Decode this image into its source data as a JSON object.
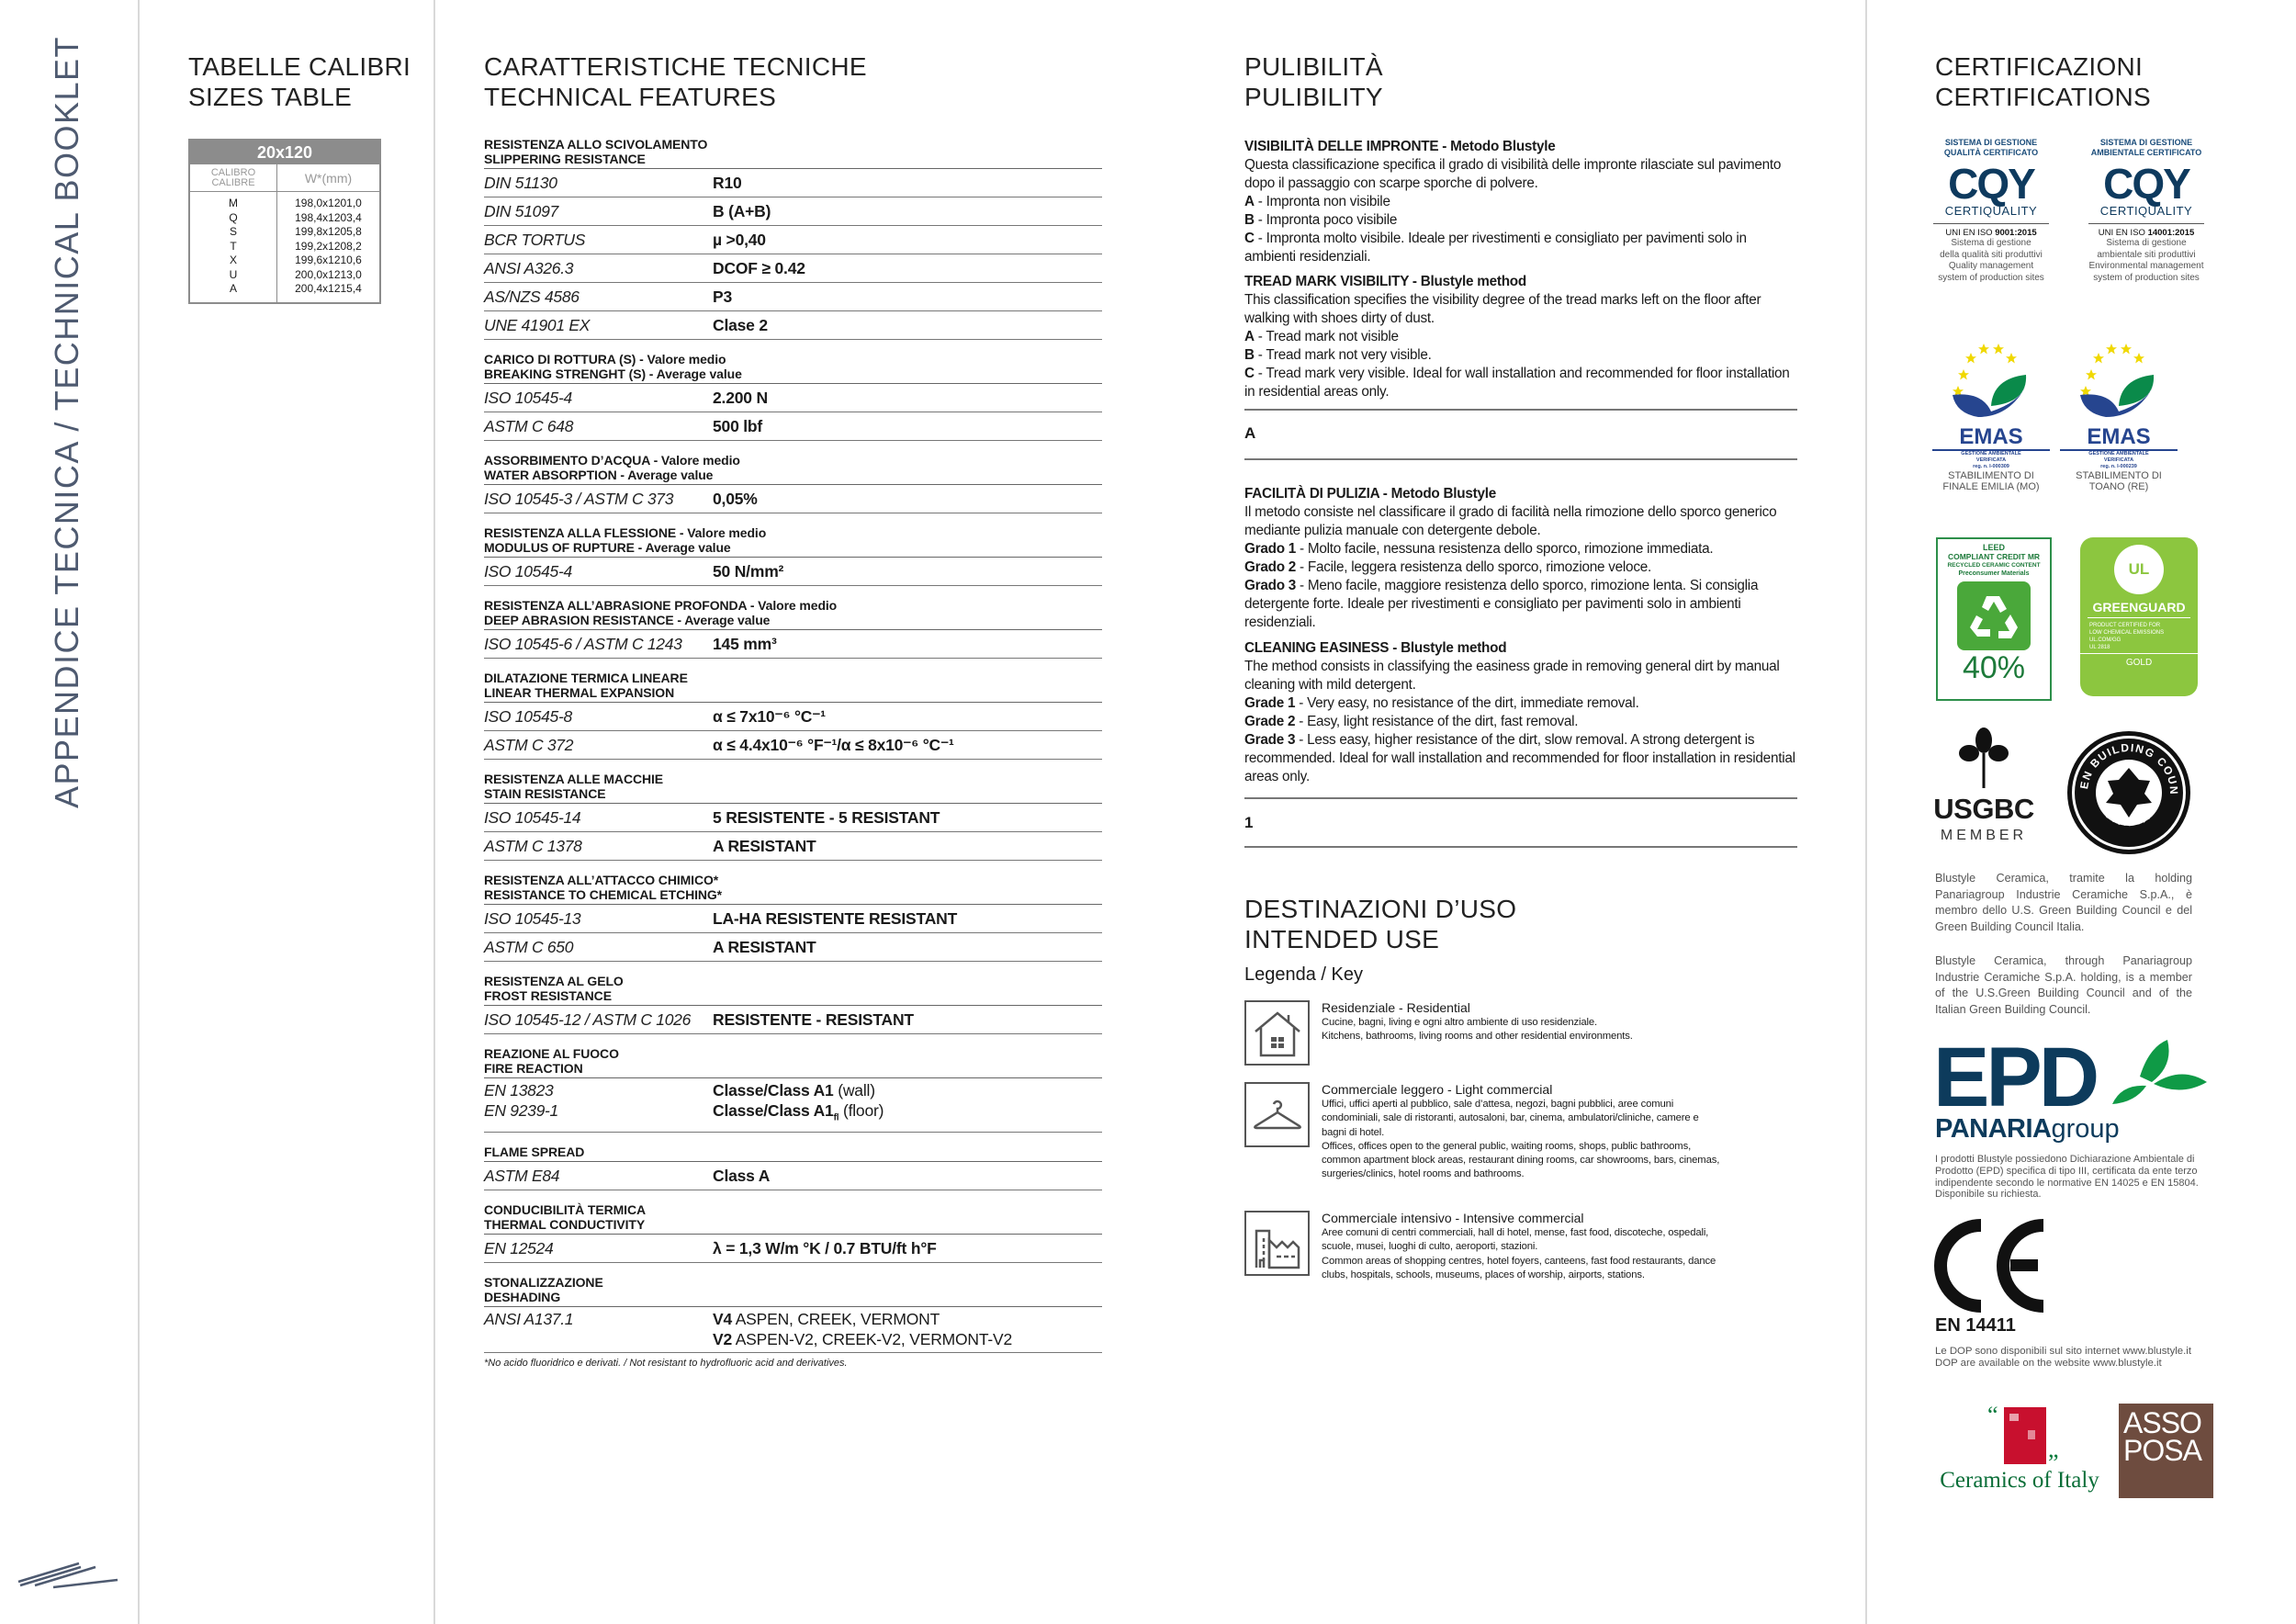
{
  "side_title": "APPENDICE TECNICA / TECHNICAL BOOKLET",
  "sizes": {
    "title": [
      "TABELLE CALIBRI",
      "SIZES TABLE"
    ],
    "format": "20x120",
    "col1": [
      "CALIBRO",
      "CALIBRE"
    ],
    "col2": "W*(mm)",
    "rows": [
      {
        "cal": "M",
        "w": "198,0x1201,0"
      },
      {
        "cal": "Q",
        "w": "198,4x1203,4"
      },
      {
        "cal": "S",
        "w": "199,8x1205,8"
      },
      {
        "cal": "T",
        "w": "199,2x1208,2"
      },
      {
        "cal": "X",
        "w": "199,6x1210,6"
      },
      {
        "cal": "U",
        "w": "200,0x1213,0"
      },
      {
        "cal": "A",
        "w": "200,4x1215,4"
      }
    ]
  },
  "tech": {
    "title": [
      "CARATTERISTICHE TECNICHE",
      "TECHNICAL FEATURES"
    ],
    "sections": [
      {
        "h": [
          "RESISTENZA ALLO SCIVOLAMENTO",
          "SLIPPERING RESISTANCE"
        ],
        "rows": [
          {
            "l": [
              "DIN 51130"
            ],
            "v": [
              {
                "b": "R10"
              }
            ]
          },
          {
            "l": [
              "DIN 51097"
            ],
            "v": [
              {
                "b": "B (A+B)"
              }
            ]
          },
          {
            "l": [
              "BCR TORTUS"
            ],
            "v": [
              {
                "b": "µ >0,40"
              }
            ]
          },
          {
            "l": [
              "ANSI A326.3"
            ],
            "v": [
              {
                "b": "DCOF ≥ 0.42"
              }
            ]
          },
          {
            "l": [
              "AS/NZS 4586"
            ],
            "v": [
              {
                "b": "P3"
              }
            ]
          },
          {
            "l": [
              "UNE 41901 EX"
            ],
            "v": [
              {
                "b": "Clase 2"
              }
            ]
          }
        ]
      },
      {
        "h": [
          "CARICO DI ROTTURA (S) - Valore medio",
          "BREAKING STRENGHT (S) - Average value"
        ],
        "rows": [
          {
            "l": [
              "ISO 10545-4"
            ],
            "v": [
              {
                "b": "2.200 N"
              }
            ]
          },
          {
            "l": [
              "ASTM C 648"
            ],
            "v": [
              {
                "b": "500 lbf"
              }
            ]
          }
        ]
      },
      {
        "h": [
          "ASSORBIMENTO D’ACQUA - Valore medio",
          "WATER ABSORPTION - Average value"
        ],
        "rows": [
          {
            "l": [
              "ISO 10545-3 / ASTM C 373"
            ],
            "v": [
              {
                "b": "0,05%"
              }
            ]
          }
        ]
      },
      {
        "h": [
          "RESISTENZA ALLA FLESSIONE - Valore medio",
          "MODULUS OF RUPTURE - Average value"
        ],
        "rows": [
          {
            "l": [
              "ISO 10545-4"
            ],
            "v": [
              {
                "b": "50 N/mm²"
              }
            ]
          }
        ]
      },
      {
        "h": [
          "RESISTENZA ALL’ABRASIONE PROFONDA - Valore medio",
          "DEEP ABRASION RESISTANCE - Average value"
        ],
        "rows": [
          {
            "l": [
              "ISO 10545-6 / ASTM C 1243"
            ],
            "v": [
              {
                "b": "145 mm³"
              }
            ]
          }
        ]
      },
      {
        "h": [
          "DILATAZIONE TERMICA LINEARE",
          "LINEAR THERMAL EXPANSION"
        ],
        "rows": [
          {
            "l": [
              "ISO 10545-8"
            ],
            "v": [
              {
                "b": "α ≤ 7x10⁻⁶ °C⁻¹"
              }
            ]
          },
          {
            "l": [
              "ASTM C 372"
            ],
            "v": [
              {
                "b": "α ≤ 4.4x10⁻⁶ °F⁻¹/α ≤ 8x10⁻⁶ °C⁻¹"
              }
            ]
          }
        ]
      },
      {
        "h": [
          "RESISTENZA ALLE MACCHIE",
          "STAIN RESISTANCE"
        ],
        "rows": [
          {
            "l": [
              "ISO 10545-14"
            ],
            "v": [
              {
                "b": "5 RESISTENTE - 5 RESISTANT"
              }
            ]
          },
          {
            "l": [
              "ASTM C 1378"
            ],
            "v": [
              {
                "b": "A RESISTANT"
              }
            ]
          }
        ]
      },
      {
        "h": [
          "RESISTENZA ALL’ATTACCO CHIMICO*",
          "RESISTANCE TO CHEMICAL ETCHING*"
        ],
        "rows": [
          {
            "l": [
              "ISO 10545-13"
            ],
            "v": [
              {
                "b": "LA-HA RESISTENTE RESISTANT"
              }
            ]
          },
          {
            "l": [
              "ASTM C 650"
            ],
            "v": [
              {
                "b": "A RESISTANT"
              }
            ]
          }
        ]
      },
      {
        "h": [
          "RESISTENZA AL GELO",
          "FROST RESISTANCE"
        ],
        "rows": [
          {
            "l": [
              "ISO 10545-12 / ASTM C 1026"
            ],
            "v": [
              {
                "b": "RESISTENTE - RESISTANT"
              }
            ]
          }
        ]
      },
      {
        "h": [
          "REAZIONE AL FUOCO",
          "FIRE REACTION"
        ],
        "rows": [
          {
            "l": [
              "EN 13823",
              "EN 9239-1"
            ],
            "v": [
              {
                "b": "Classe/Class A1",
                "n": " (wall)"
              },
              {
                "b": "Classe/Class A1",
                "sub": "fl",
                "n": " (floor)"
              }
            ]
          }
        ]
      },
      {
        "h": [
          "FLAME SPREAD"
        ],
        "rows": [
          {
            "l": [
              "ASTM E84"
            ],
            "v": [
              {
                "b": "Class A"
              }
            ]
          }
        ]
      },
      {
        "h": [
          "CONDUCIBILITÀ TERMICA",
          "THERMAL CONDUCTIVITY"
        ],
        "rows": [
          {
            "l": [
              "EN 12524"
            ],
            "v": [
              {
                "b": "λ = 1,3 W/m °K / 0.7 BTU/ft h°F"
              }
            ]
          }
        ]
      },
      {
        "h": [
          "STONALIZZAZIONE",
          "DESHADING"
        ],
        "rows": [
          {
            "l": [
              "ANSI A137.1"
            ],
            "v": [
              {
                "b": "V4",
                "n": " ASPEN, CREEK, VERMONT"
              },
              {
                "b": "V2",
                "n": " ASPEN-V2, CREEK-V2, VERMONT-V2"
              }
            ]
          }
        ]
      }
    ],
    "footnote": "*No acido fluoridrico e derivati. / Not resistant to hydrofluoric acid and derivatives."
  },
  "pulibility": {
    "title": [
      "PULIBILITÀ",
      "PULIBILITY"
    ],
    "blocks": [
      {
        "t": "VISIBILITÀ DELLE IMPRONTE - Metodo Blustyle",
        "p": "Questa classificazione specifica il grado di visibilità delle impronte rilasciate sul pavimento dopo il passaggio con scarpe sporche di polvere.",
        "items": [
          {
            "k": "A",
            "v": " - Impronta non visibile"
          },
          {
            "k": "B",
            "v": " - Impronta poco visibile"
          },
          {
            "k": "C",
            "v": " - Impronta molto visibile. Ideale per rivestimenti e consigliato per pavimenti solo in ambienti residenziali."
          }
        ]
      },
      {
        "t": "TREAD MARK VISIBILITY - Blustyle method",
        "p": "This classification specifies the visibility degree of the tread marks left on the floor after walking with shoes dirty of dust.",
        "items": [
          {
            "k": "A",
            "v": " - Tread mark not visible"
          },
          {
            "k": "B",
            "v": " - Tread mark not very visible."
          },
          {
            "k": "C",
            "v": " - Tread mark very visible. Ideal for wall installation and recommended for floor installation  in residential areas only."
          }
        ]
      },
      {
        "t": "FACILITÀ DI PULIZIA - Metodo Blustyle",
        "p": "Il metodo consiste nel classificare il grado di facilità nella rimozione dello sporco generico mediante pulizia manuale con detergente debole.",
        "items": [
          {
            "k": "Grado 1",
            "v": " - Molto facile, nessuna resistenza dello sporco, rimozione immediata."
          },
          {
            "k": "Grado 2",
            "v": " - Facile, leggera resistenza dello sporco, rimozione veloce."
          },
          {
            "k": "Grado 3",
            "v": " - Meno facile, maggiore resistenza dello sporco, rimozione lenta. Si consiglia detergente forte. Ideale per rivestimenti e consigliato per pavimenti solo in ambienti residenziali."
          }
        ]
      },
      {
        "t": "CLEANING EASINESS - Blustyle method",
        "p": "The method consists in classifying the easiness grade in removing general dirt by manual cleaning with mild detergent.",
        "items": [
          {
            "k": "Grade 1",
            "v": " - Very easy, no resistance of the dirt, immediate removal."
          },
          {
            "k": "Grade 2",
            "v": " - Easy, light resistance of the dirt, fast removal."
          },
          {
            "k": "Grade 3",
            "v": " - Less easy, higher resistance of the dirt, slow removal. A strong detergent is recommended. Ideal for wall installation and recommended for floor installation  in residential areas only."
          }
        ]
      }
    ],
    "visibility_value": "A",
    "cleaning_value": "1"
  },
  "intended_use": {
    "title": [
      "DESTINAZIONI D’USO",
      "INTENDED USE"
    ],
    "key": "Legenda / Key",
    "items": [
      {
        "icon": "house-icon",
        "t": "Residenziale - Residential",
        "d": [
          "Cucine, bagni, living e ogni altro ambiente di uso residenziale.",
          "Kitchens, bathrooms, living rooms and other residential environments."
        ]
      },
      {
        "icon": "hanger-icon",
        "t": "Commerciale leggero - Light commercial",
        "d": [
          "Uffici, uffici aperti al pubblico, sale d’attesa, negozi, bagni pubblici, aree comuni condominiali, sale di ristoranti, autosaloni, bar, cinema, ambulatori/cliniche, camere e bagni di hotel.",
          "Offices, offices open to the general public, waiting rooms, shops, public bathrooms, common apartment block areas, restaurant dining rooms, car showrooms, bars, cinemas, surgeries/clinics, hotel rooms and bathrooms."
        ]
      },
      {
        "icon": "buildings-icon",
        "t": "Commerciale intensivo - Intensive commercial",
        "d": [
          "Aree comuni di centri commerciali, hall di hotel, mense, fast food, discoteche, ospedali, scuole, musei, luoghi di culto, aeroporti, stazioni.",
          "Common areas of shopping centres, hotel foyers, canteens, fast food restaurants, dance clubs, hospitals, schools, museums, places of worship, airports, stations."
        ]
      }
    ]
  },
  "certifications": {
    "title": [
      "CERTIFICAZIONI",
      "CERTIFICATIONS"
    ],
    "cqy": [
      {
        "top": [
          "SISTEMA DI GESTIONE",
          "QUALITÀ CERTIFICATO"
        ],
        "logo": "CQY",
        "sub": "CERTIQUALITY",
        "iso_pre": "UNI EN ISO ",
        "iso": "9001:2015",
        "desc": [
          "Sistema di gestione",
          "della qualità siti produttivi",
          "Quality management",
          "system of production sites"
        ]
      },
      {
        "top": [
          "SISTEMA DI GESTIONE",
          "AMBIENTALE CERTIFICATO"
        ],
        "logo": "CQY",
        "sub": "CERTIQUALITY",
        "iso_pre": "UNI EN ISO ",
        "iso": "14001:2015",
        "desc": [
          "Sistema di gestione",
          "ambientale siti produttivi",
          "Environmental management",
          "system of production sites"
        ]
      }
    ],
    "emas": [
      {
        "logo": "EMAS",
        "sub": [
          "GESTIONE AMBIENTALE",
          "VERIFICATA",
          "reg. n. I-000309"
        ],
        "site": [
          "STABILIMENTO DI",
          "FINALE EMILIA (MO)"
        ]
      },
      {
        "logo": "EMAS",
        "sub": [
          "GESTIONE AMBIENTALE",
          "VERIFICATA",
          "reg. n. I-000239"
        ],
        "site": [
          "STABILIMENTO DI",
          "TOANO (RE)"
        ]
      }
    ],
    "leed": {
      "lines": [
        "LEED",
        "COMPLIANT CREDIT MR",
        "RECYCLED CERAMIC CONTENT",
        "Preconsumer Materials"
      ],
      "percent": "40%"
    },
    "greenguard": {
      "ul": "UL",
      "name": "GREENGUARD",
      "lines": [
        "PRODUCT CERTIFIED FOR",
        "LOW CHEMICAL EMISSIONS",
        "UL.COM/GG",
        "UL 2818"
      ],
      "level": "GOLD"
    },
    "usgbc": {
      "name": "USGBC",
      "member": "MEMBER"
    },
    "gbc_italia": {
      "ring_top": "GREEN BUILDING COUNCIL",
      "ring_bottom": "ITALIA"
    },
    "gbc_text_it": "Blustyle Ceramica, tramite la holding Panariagroup Industrie Ceramiche S.p.A., è membro dello U.S. Green Building Council e del Green Building Council Italia.",
    "gbc_text_en": "Blustyle Ceramica, through Panariagroup Industrie Ceramiche S.p.A. holding, is a member of the U.S.Green Building Council and of the Italian Green Building Council.",
    "epd": {
      "logo": "EPD",
      "group_bold": "PANARIA",
      "group_light": "group",
      "text": "I prodotti Blustyle possiedono Dichiarazione Ambientale di Prodotto (EPD) specifica di tipo III, certificata da ente terzo indipendente secondo le normative EN 14025 e EN 15804. Disponibile su richiesta."
    },
    "ce": {
      "mark": "CE",
      "norm": "EN 14411",
      "text": [
        "Le DOP sono disponibili sul sito internet www.blustyle.it",
        "DOP are available on the website www.blustyle.it"
      ]
    },
    "ceramics_of_italy": "Ceramics of Italy",
    "assoposa": [
      "ASSO",
      "POSA"
    ]
  },
  "colors": {
    "rule": "#777777",
    "table_header": "#8c8c8c",
    "cqy_blue": "#0e3a5e",
    "emas_blue": "#26458f",
    "emas_green": "#0a8a4a",
    "leed_green": "#4aa83a",
    "greenguard": "#8cc63f",
    "epd_blue": "#0d3b5c",
    "ceramics_red": "#c8102e",
    "assoposa_brown": "#6e4c3f"
  }
}
